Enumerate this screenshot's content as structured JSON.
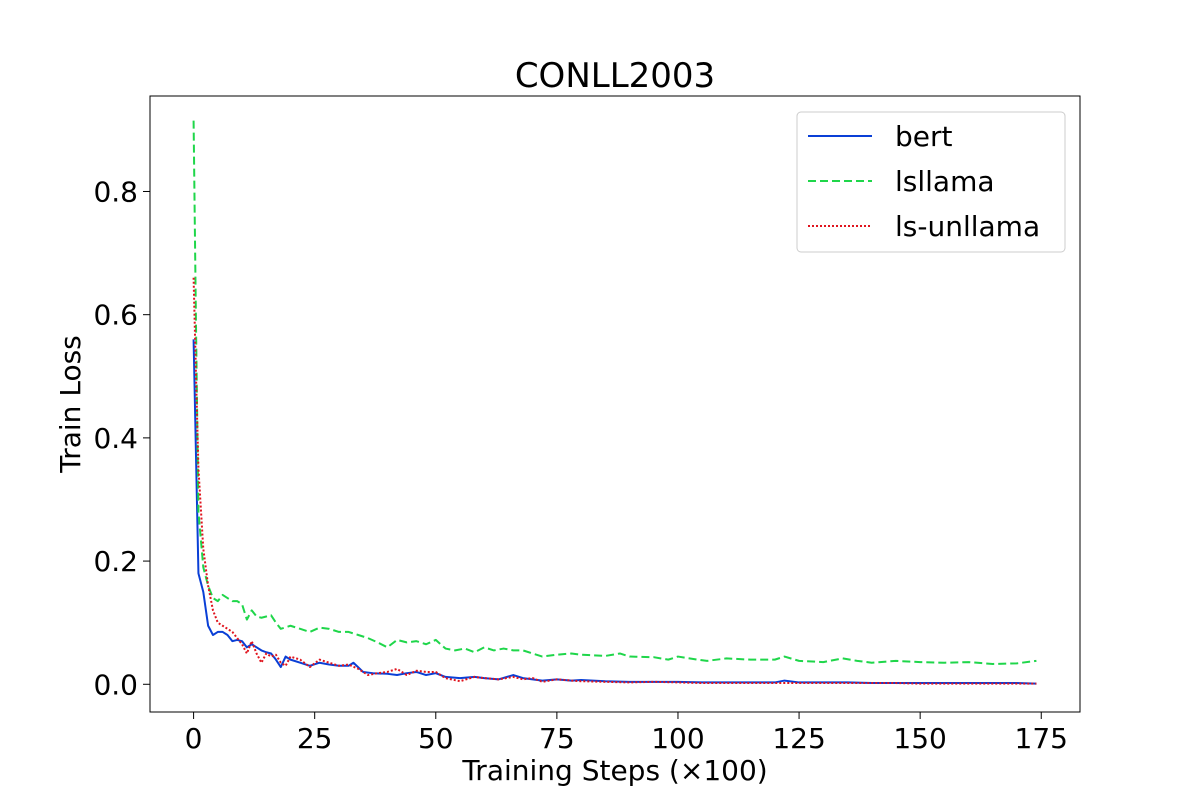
{
  "chart_data": {
    "type": "line",
    "title": "CONLL2003",
    "xlabel": "Training Steps (×100)",
    "ylabel": "Train Loss",
    "xlim": [
      -9,
      183
    ],
    "ylim": [
      -0.045,
      0.955
    ],
    "xticks": [
      0,
      25,
      50,
      75,
      100,
      125,
      150,
      175
    ],
    "yticks": [
      0.0,
      0.2,
      0.4,
      0.6,
      0.8
    ],
    "xtick_labels": [
      "0",
      "25",
      "50",
      "75",
      "100",
      "125",
      "150",
      "175"
    ],
    "ytick_labels": [
      "0.0",
      "0.2",
      "0.4",
      "0.6",
      "0.8"
    ],
    "legend_position": "top-right",
    "series": [
      {
        "name": "bert",
        "color": "#0a3fd6",
        "dash": "solid",
        "points": [
          [
            0,
            0.56
          ],
          [
            1,
            0.18
          ],
          [
            2,
            0.15
          ],
          [
            3,
            0.095
          ],
          [
            4,
            0.08
          ],
          [
            5,
            0.085
          ],
          [
            6,
            0.085
          ],
          [
            7,
            0.08
          ],
          [
            8,
            0.07
          ],
          [
            9,
            0.072
          ],
          [
            10,
            0.07
          ],
          [
            11,
            0.06
          ],
          [
            12,
            0.065
          ],
          [
            13,
            0.06
          ],
          [
            14,
            0.055
          ],
          [
            15,
            0.052
          ],
          [
            16,
            0.05
          ],
          [
            17,
            0.04
          ],
          [
            18,
            0.028
          ],
          [
            19,
            0.045
          ],
          [
            20,
            0.04
          ],
          [
            22,
            0.035
          ],
          [
            24,
            0.03
          ],
          [
            26,
            0.035
          ],
          [
            28,
            0.032
          ],
          [
            30,
            0.03
          ],
          [
            32,
            0.03
          ],
          [
            33,
            0.035
          ],
          [
            35,
            0.02
          ],
          [
            37,
            0.018
          ],
          [
            40,
            0.017
          ],
          [
            42,
            0.015
          ],
          [
            44,
            0.018
          ],
          [
            46,
            0.02
          ],
          [
            48,
            0.015
          ],
          [
            50,
            0.018
          ],
          [
            52,
            0.012
          ],
          [
            55,
            0.01
          ],
          [
            58,
            0.012
          ],
          [
            60,
            0.01
          ],
          [
            63,
            0.008
          ],
          [
            66,
            0.015
          ],
          [
            68,
            0.01
          ],
          [
            70,
            0.008
          ],
          [
            72,
            0.006
          ],
          [
            75,
            0.008
          ],
          [
            78,
            0.006
          ],
          [
            80,
            0.007
          ],
          [
            85,
            0.005
          ],
          [
            90,
            0.004
          ],
          [
            95,
            0.004
          ],
          [
            100,
            0.004
          ],
          [
            105,
            0.003
          ],
          [
            110,
            0.003
          ],
          [
            115,
            0.003
          ],
          [
            120,
            0.003
          ],
          [
            122,
            0.006
          ],
          [
            125,
            0.003
          ],
          [
            130,
            0.003
          ],
          [
            135,
            0.003
          ],
          [
            140,
            0.002
          ],
          [
            145,
            0.002
          ],
          [
            150,
            0.002
          ],
          [
            155,
            0.002
          ],
          [
            160,
            0.002
          ],
          [
            165,
            0.002
          ],
          [
            170,
            0.002
          ],
          [
            174,
            0.001
          ]
        ]
      },
      {
        "name": "lsllama",
        "color": "#1fd64a",
        "dash": "dashed",
        "points": [
          [
            0,
            0.915
          ],
          [
            0.5,
            0.58
          ],
          [
            1,
            0.28
          ],
          [
            2,
            0.19
          ],
          [
            3,
            0.16
          ],
          [
            4,
            0.14
          ],
          [
            5,
            0.135
          ],
          [
            6,
            0.145
          ],
          [
            7,
            0.14
          ],
          [
            8,
            0.135
          ],
          [
            9,
            0.135
          ],
          [
            10,
            0.13
          ],
          [
            11,
            0.105
          ],
          [
            12,
            0.12
          ],
          [
            13,
            0.11
          ],
          [
            14,
            0.108
          ],
          [
            15,
            0.11
          ],
          [
            16,
            0.112
          ],
          [
            17,
            0.1
          ],
          [
            18,
            0.09
          ],
          [
            20,
            0.095
          ],
          [
            22,
            0.09
          ],
          [
            24,
            0.085
          ],
          [
            26,
            0.092
          ],
          [
            28,
            0.09
          ],
          [
            30,
            0.085
          ],
          [
            32,
            0.085
          ],
          [
            34,
            0.08
          ],
          [
            36,
            0.075
          ],
          [
            38,
            0.068
          ],
          [
            40,
            0.06
          ],
          [
            42,
            0.072
          ],
          [
            44,
            0.068
          ],
          [
            46,
            0.07
          ],
          [
            48,
            0.065
          ],
          [
            50,
            0.072
          ],
          [
            52,
            0.058
          ],
          [
            54,
            0.055
          ],
          [
            56,
            0.058
          ],
          [
            58,
            0.052
          ],
          [
            60,
            0.06
          ],
          [
            62,
            0.055
          ],
          [
            64,
            0.058
          ],
          [
            66,
            0.055
          ],
          [
            68,
            0.055
          ],
          [
            70,
            0.05
          ],
          [
            72,
            0.045
          ],
          [
            75,
            0.048
          ],
          [
            78,
            0.05
          ],
          [
            80,
            0.048
          ],
          [
            85,
            0.046
          ],
          [
            88,
            0.05
          ],
          [
            90,
            0.045
          ],
          [
            95,
            0.044
          ],
          [
            98,
            0.04
          ],
          [
            100,
            0.045
          ],
          [
            104,
            0.04
          ],
          [
            106,
            0.038
          ],
          [
            110,
            0.042
          ],
          [
            115,
            0.04
          ],
          [
            120,
            0.04
          ],
          [
            122,
            0.045
          ],
          [
            125,
            0.038
          ],
          [
            130,
            0.036
          ],
          [
            134,
            0.042
          ],
          [
            137,
            0.038
          ],
          [
            140,
            0.035
          ],
          [
            145,
            0.038
          ],
          [
            150,
            0.036
          ],
          [
            155,
            0.035
          ],
          [
            160,
            0.036
          ],
          [
            165,
            0.033
          ],
          [
            170,
            0.034
          ],
          [
            174,
            0.038
          ]
        ]
      },
      {
        "name": "ls-unllama",
        "color": "#e0141e",
        "dash": "dotted",
        "points": [
          [
            0,
            0.66
          ],
          [
            0.5,
            0.5
          ],
          [
            1,
            0.35
          ],
          [
            2,
            0.22
          ],
          [
            3,
            0.16
          ],
          [
            4,
            0.12
          ],
          [
            5,
            0.1
          ],
          [
            6,
            0.095
          ],
          [
            7,
            0.09
          ],
          [
            8,
            0.085
          ],
          [
            9,
            0.075
          ],
          [
            10,
            0.065
          ],
          [
            11,
            0.05
          ],
          [
            12,
            0.07
          ],
          [
            13,
            0.05
          ],
          [
            14,
            0.035
          ],
          [
            15,
            0.05
          ],
          [
            16,
            0.045
          ],
          [
            17,
            0.048
          ],
          [
            18,
            0.035
          ],
          [
            19,
            0.03
          ],
          [
            20,
            0.045
          ],
          [
            22,
            0.04
          ],
          [
            24,
            0.028
          ],
          [
            26,
            0.04
          ],
          [
            28,
            0.035
          ],
          [
            30,
            0.03
          ],
          [
            32,
            0.032
          ],
          [
            34,
            0.025
          ],
          [
            36,
            0.015
          ],
          [
            38,
            0.018
          ],
          [
            40,
            0.02
          ],
          [
            42,
            0.025
          ],
          [
            44,
            0.015
          ],
          [
            46,
            0.022
          ],
          [
            48,
            0.02
          ],
          [
            50,
            0.02
          ],
          [
            52,
            0.01
          ],
          [
            55,
            0.005
          ],
          [
            58,
            0.012
          ],
          [
            60,
            0.01
          ],
          [
            63,
            0.008
          ],
          [
            66,
            0.012
          ],
          [
            68,
            0.008
          ],
          [
            70,
            0.01
          ],
          [
            72,
            0.004
          ],
          [
            75,
            0.008
          ],
          [
            78,
            0.006
          ],
          [
            80,
            0.005
          ],
          [
            85,
            0.004
          ],
          [
            90,
            0.003
          ],
          [
            95,
            0.004
          ],
          [
            100,
            0.003
          ],
          [
            105,
            0.002
          ],
          [
            110,
            0.002
          ],
          [
            115,
            0.002
          ],
          [
            120,
            0.002
          ],
          [
            125,
            0.002
          ],
          [
            130,
            0.002
          ],
          [
            135,
            0.002
          ],
          [
            140,
            0.002
          ],
          [
            145,
            0.002
          ],
          [
            150,
            0.001
          ],
          [
            155,
            0.001
          ],
          [
            160,
            0.001
          ],
          [
            165,
            0.001
          ],
          [
            170,
            0.001
          ],
          [
            174,
            0.001
          ]
        ]
      }
    ]
  }
}
